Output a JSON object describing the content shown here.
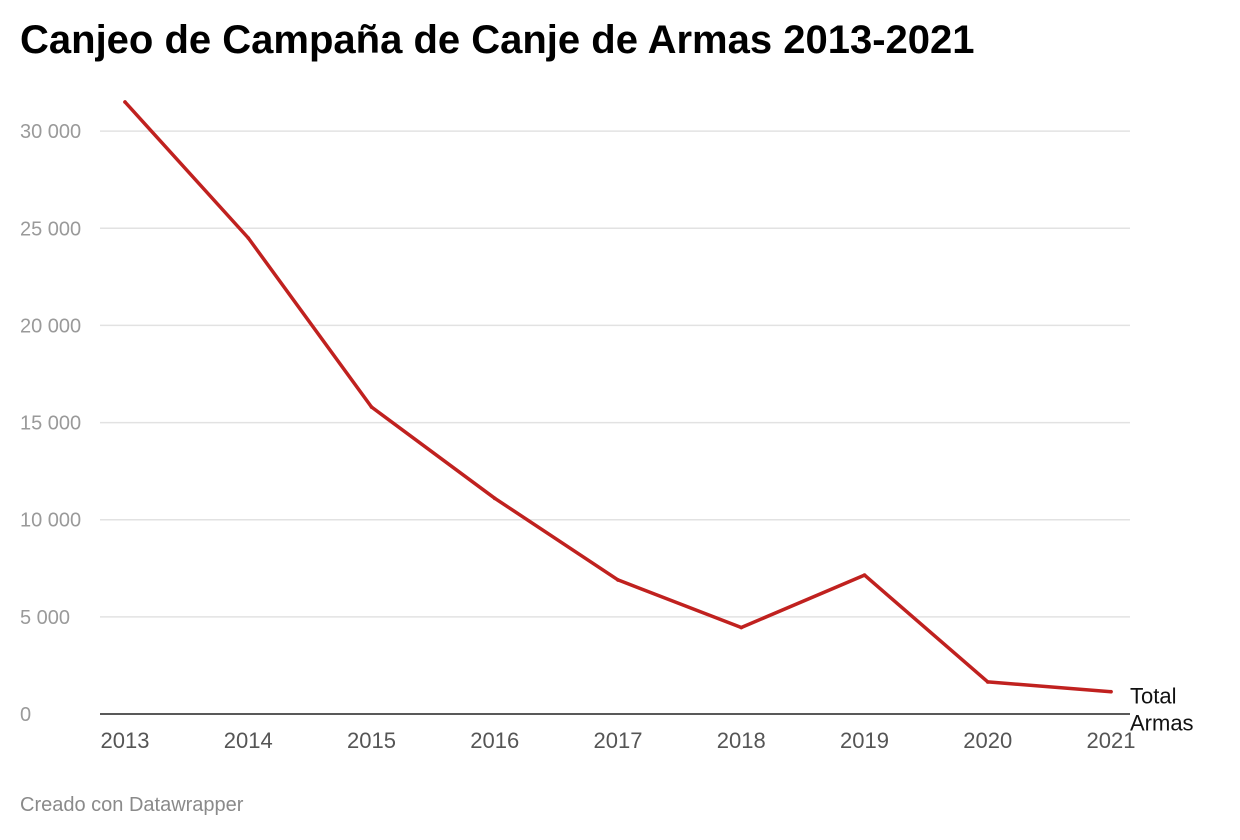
{
  "title": "Canjeo de Campaña de Canje de Armas 2013-2021",
  "footer": "Creado con Datawrapper",
  "chart_data": {
    "type": "line",
    "title": "Canjeo de Campaña de Canje de Armas 2013-2021",
    "xlabel": "",
    "ylabel": "",
    "x": [
      "2013",
      "2014",
      "2015",
      "2016",
      "2017",
      "2018",
      "2019",
      "2020",
      "2021"
    ],
    "series": [
      {
        "name": "Total Armas",
        "values": [
          31500,
          24500,
          15800,
          11100,
          6900,
          4450,
          7150,
          1650,
          1150
        ],
        "color": "#c0211f"
      }
    ],
    "ylim": [
      0,
      31500
    ],
    "yticks": [
      0,
      5000,
      10000,
      15000,
      20000,
      25000,
      30000
    ],
    "ytick_labels": [
      "0",
      "5 000",
      "10 000",
      "15 000",
      "20 000",
      "25 000",
      "30 000"
    ],
    "series_label_lines": [
      "Total",
      "Armas"
    ],
    "grid": true,
    "legend": "inline-end"
  }
}
